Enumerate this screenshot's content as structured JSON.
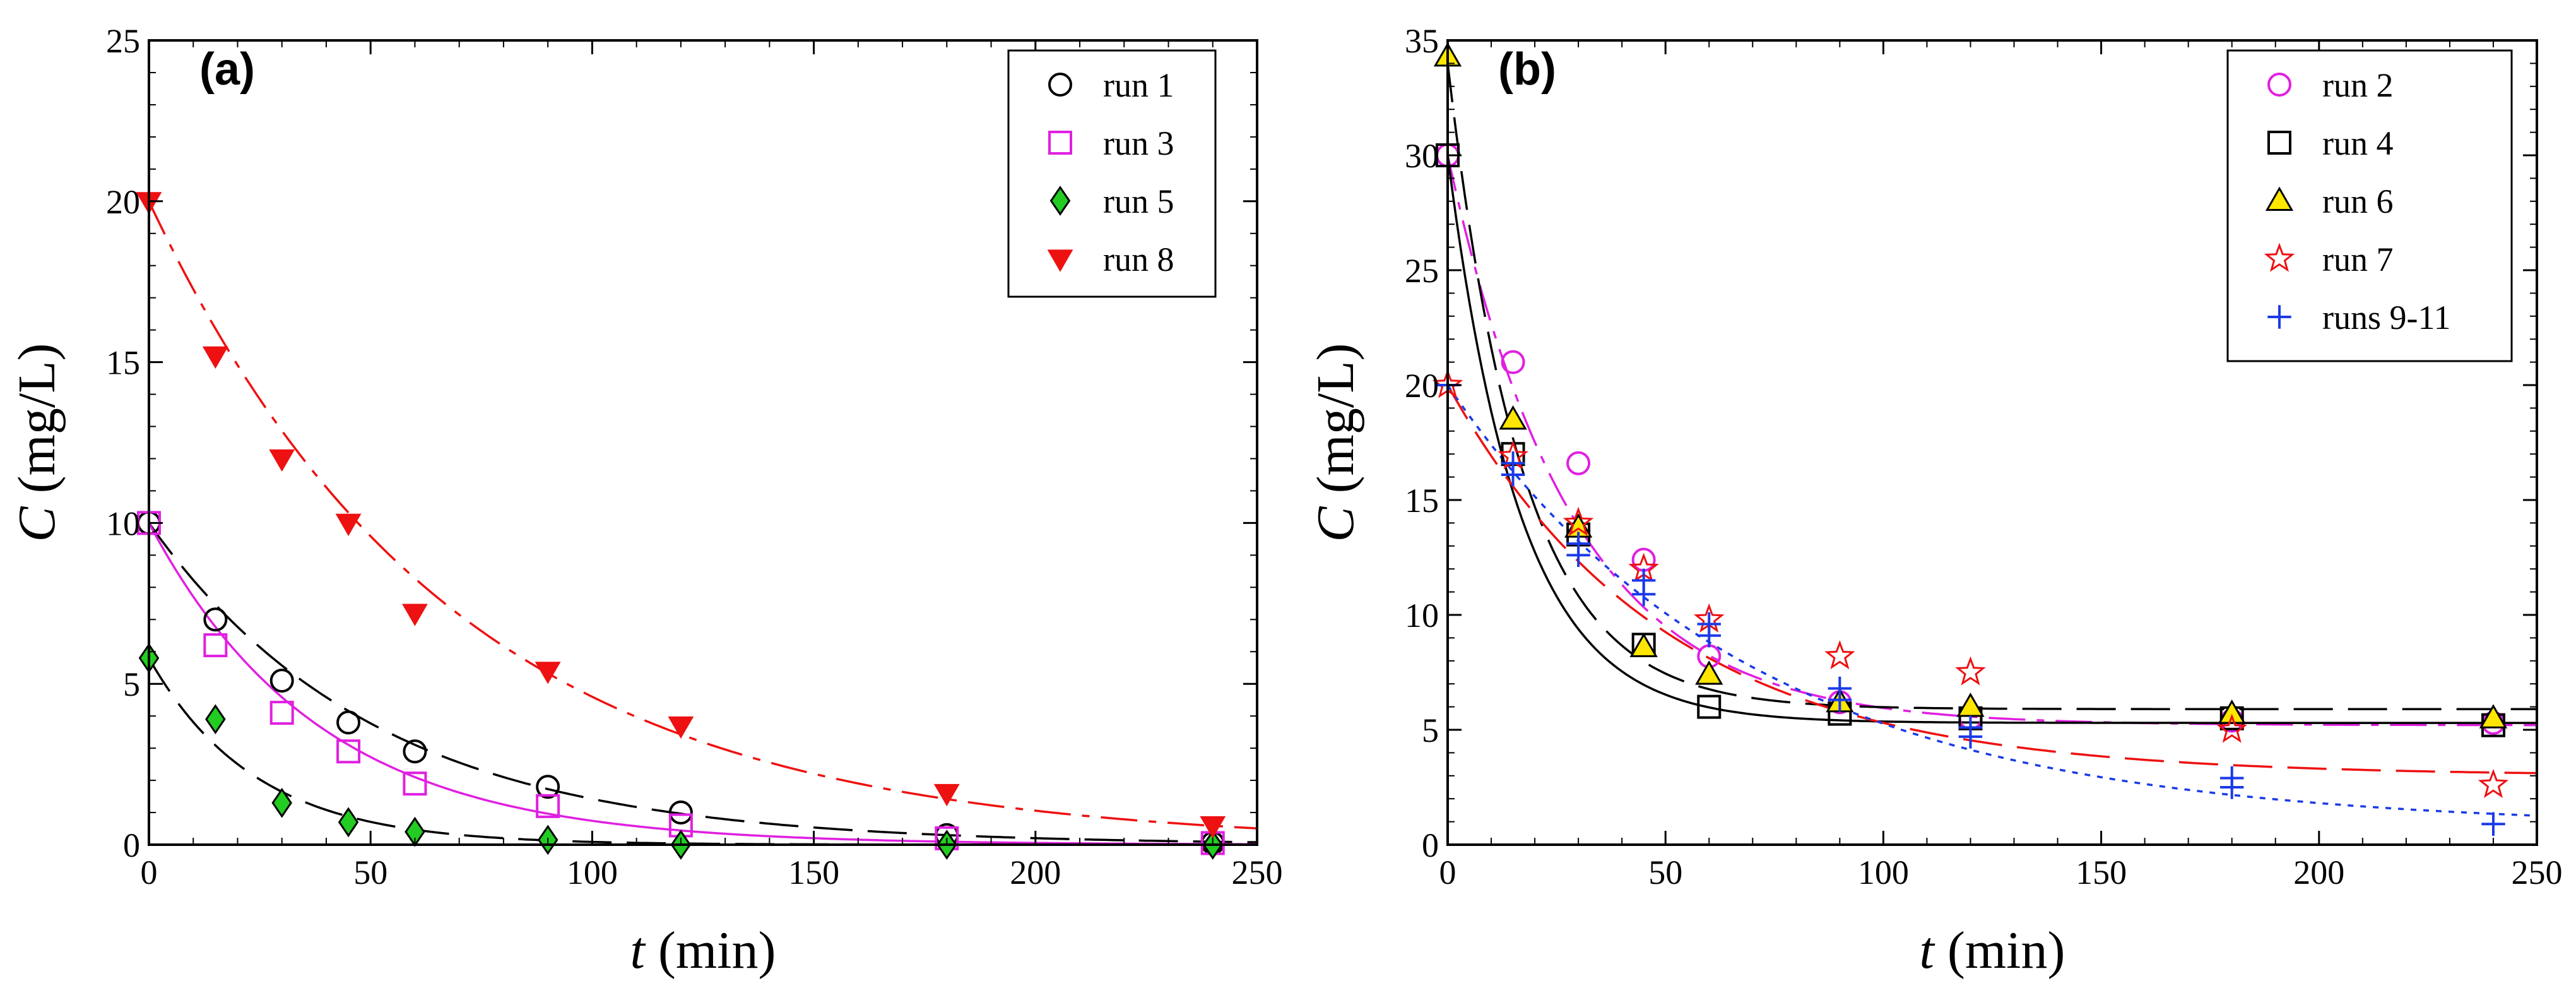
{
  "chart_data": [
    {
      "panel_label": "(a)",
      "type": "scatter",
      "xlabel": {
        "var": "t",
        "unit": " (min)"
      },
      "ylabel": {
        "var": "C",
        "unit": " (mg/L)"
      },
      "xlim": [
        0,
        250
      ],
      "ylim": [
        0,
        25
      ],
      "xticks": [
        0,
        50,
        100,
        150,
        200,
        250
      ],
      "yticks": [
        0,
        5,
        10,
        15,
        20,
        25
      ],
      "grid": false,
      "legend": "top-right",
      "series": [
        {
          "name": "run 1",
          "marker": "circle",
          "color": "#000000",
          "fill": "none",
          "x": [
            0,
            15,
            30,
            45,
            60,
            90,
            120,
            180,
            240
          ],
          "y": [
            10.0,
            7.0,
            5.1,
            3.8,
            2.9,
            1.8,
            1.0,
            0.3,
            0.05
          ],
          "fit": {
            "C0": 10.0,
            "k": 0.0195,
            "Cinf": 0.0,
            "style": "long-dash",
            "color": "#000000"
          }
        },
        {
          "name": "run 3",
          "marker": "square",
          "color": "#e020e0",
          "fill": "none",
          "x": [
            0,
            15,
            30,
            45,
            60,
            90,
            120,
            180,
            240
          ],
          "y": [
            10.0,
            6.2,
            4.1,
            2.9,
            1.9,
            1.2,
            0.6,
            0.2,
            0.05
          ],
          "fit": {
            "C0": 10.0,
            "k": 0.026,
            "Cinf": 0.0,
            "style": "solid",
            "color": "#e020e0"
          }
        },
        {
          "name": "run 5",
          "marker": "diamond",
          "color": "#000000",
          "fill": "#22cc22",
          "x": [
            0,
            15,
            30,
            45,
            60,
            90,
            120,
            180,
            240
          ],
          "y": [
            5.8,
            3.9,
            1.3,
            0.7,
            0.4,
            0.15,
            0.0,
            0.0,
            0.0
          ],
          "fit": {
            "C0": 5.8,
            "k": 0.042,
            "Cinf": 0.0,
            "style": "long-dash",
            "color": "#000000"
          }
        },
        {
          "name": "run 8",
          "marker": "triangle-down",
          "color": "#ee1111",
          "fill": "#ee1111",
          "x": [
            0,
            15,
            30,
            45,
            60,
            90,
            120,
            180,
            240
          ],
          "y": [
            20.0,
            15.2,
            12.0,
            10.0,
            7.2,
            5.4,
            3.7,
            1.6,
            0.6
          ],
          "fit": {
            "C0": 20.0,
            "k": 0.0147,
            "Cinf": 0.0,
            "style": "dash-dot",
            "color": "#ee1111"
          }
        }
      ]
    },
    {
      "panel_label": "(b)",
      "type": "scatter",
      "xlabel": {
        "var": "t",
        "unit": " (min)"
      },
      "ylabel": {
        "var": "C",
        "unit": " (mg/L)"
      },
      "xlim": [
        0,
        250
      ],
      "ylim": [
        0,
        35
      ],
      "xticks": [
        0,
        50,
        100,
        150,
        200,
        250
      ],
      "yticks": [
        0,
        5,
        10,
        15,
        20,
        25,
        30,
        35
      ],
      "grid": false,
      "legend": "top-right",
      "series": [
        {
          "name": "run 2",
          "marker": "circle",
          "color": "#e020e0",
          "fill": "none",
          "x": [
            0,
            15,
            30,
            45,
            60,
            90,
            120,
            180,
            240
          ],
          "y": [
            30.0,
            21.0,
            16.6,
            12.4,
            8.2,
            6.2,
            5.5,
            5.4,
            5.3
          ],
          "fit": {
            "C0": 30.0,
            "k": 0.035,
            "Cinf": 5.2,
            "style": "dash-dot",
            "color": "#e020e0"
          }
        },
        {
          "name": "run 4",
          "marker": "square",
          "color": "#000000",
          "fill": "none",
          "x": [
            0,
            15,
            30,
            45,
            60,
            90,
            120,
            180,
            240
          ],
          "y": [
            30.0,
            17.0,
            13.5,
            8.7,
            6.0,
            5.7,
            5.5,
            5.5,
            5.2
          ],
          "fit": {
            "C0": 30.0,
            "k": 0.06,
            "Cinf": 5.3,
            "style": "solid",
            "color": "#000000"
          }
        },
        {
          "name": "run 6",
          "marker": "triangle-up",
          "color": "#000000",
          "fill": "#ffe600",
          "x": [
            0,
            15,
            30,
            45,
            60,
            90,
            120,
            180,
            240
          ],
          "y": [
            34.3,
            18.5,
            13.8,
            8.6,
            7.4,
            6.2,
            6.0,
            5.7,
            5.5
          ],
          "fit": {
            "C0": 34.0,
            "k": 0.058,
            "Cinf": 5.9,
            "style": "long-dash",
            "color": "#000000"
          }
        },
        {
          "name": "run 7",
          "marker": "star",
          "color": "#ee1111",
          "fill": "none",
          "x": [
            0,
            15,
            30,
            45,
            60,
            90,
            120,
            180,
            240
          ],
          "y": [
            20.0,
            16.9,
            14.0,
            12.0,
            9.8,
            8.2,
            7.5,
            5.0,
            2.6
          ],
          "fit": {
            "C0": 20.0,
            "k": 0.02,
            "Cinf": 3.0,
            "style": "long-dash",
            "color": "#ee1111"
          }
        },
        {
          "name": "runs 9-11",
          "marker": "plus",
          "color": "#1a3ae8",
          "fill": "none",
          "x": [
            0,
            15,
            15,
            30,
            30,
            45,
            45,
            60,
            60,
            90,
            90,
            120,
            120,
            180,
            180,
            240
          ],
          "y": [
            20.0,
            16.6,
            16.1,
            13.1,
            12.6,
            11.5,
            10.9,
            9.6,
            9.1,
            6.8,
            6.3,
            5.1,
            4.7,
            2.9,
            2.5,
            0.9
          ],
          "fit": {
            "C0": 20.0,
            "k": 0.0145,
            "Cinf": 0.75,
            "style": "dotted",
            "color": "#1a3ae8"
          }
        }
      ]
    }
  ]
}
